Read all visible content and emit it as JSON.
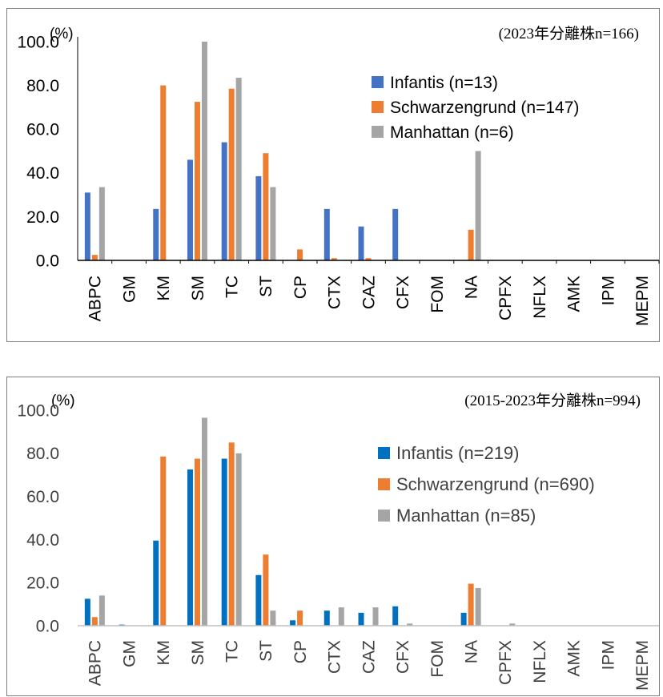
{
  "chart_data": [
    {
      "type": "bar",
      "title": "(2023年分離株n=166)",
      "ylabel": "(%)",
      "ylim": [
        0,
        100
      ],
      "yticks": [
        "0.0",
        "20.0",
        "40.0",
        "60.0",
        "80.0",
        "100.0"
      ],
      "categories": [
        "ABPC",
        "GM",
        "KM",
        "SM",
        "TC",
        "ST",
        "CP",
        "CTX",
        "CAZ",
        "CFX",
        "FOM",
        "NA",
        "CPFX",
        "NFLX",
        "AMK",
        "IPM",
        "MEPM"
      ],
      "series": [
        {
          "name": "Infantis (n=13)",
          "color": "#4472C4",
          "values": [
            31,
            0,
            23.5,
            46,
            54,
            38.5,
            0,
            23.5,
            15.5,
            23.5,
            0,
            0,
            0,
            0,
            0,
            0,
            0
          ]
        },
        {
          "name": "Schwarzengrund (n=147)",
          "color": "#ED7D31",
          "values": [
            2.5,
            0,
            80,
            72.5,
            78.5,
            49,
            5,
            1,
            1,
            0,
            0,
            14,
            0,
            0,
            0,
            0,
            0
          ]
        },
        {
          "name": "Manhattan (n=6)",
          "color": "#A5A5A5",
          "values": [
            33.5,
            0,
            0,
            100,
            83.5,
            33.5,
            0,
            0,
            0,
            0,
            0,
            50,
            0,
            0,
            0,
            0,
            0
          ]
        }
      ],
      "grid": false,
      "legend": "right"
    },
    {
      "type": "bar",
      "title": "(2015-2023年分離株n=994)",
      "ylabel": "(%)",
      "ylim": [
        0,
        100
      ],
      "yticks": [
        "0.0",
        "20.0",
        "40.0",
        "60.0",
        "80.0",
        "100.0"
      ],
      "categories": [
        "ABPC",
        "GM",
        "KM",
        "SM",
        "TC",
        "ST",
        "CP",
        "CTX",
        "CAZ",
        "CFX",
        "FOM",
        "NA",
        "CPFX",
        "NFLX",
        "AMK",
        "IPM",
        "MEPM"
      ],
      "series": [
        {
          "name": "Infantis (n=219)",
          "color": "#0070C0",
          "values": [
            12.5,
            0.5,
            39.5,
            72.5,
            77.5,
            23.5,
            2.5,
            7,
            6,
            9,
            0,
            6,
            0,
            0,
            0,
            0,
            0
          ]
        },
        {
          "name": "Schwarzengrund (n=690)",
          "color": "#ED7D31",
          "values": [
            4,
            0,
            78.5,
            77.5,
            85,
            33,
            7,
            0,
            0,
            0,
            0,
            19.5,
            0,
            0,
            0,
            0,
            0
          ]
        },
        {
          "name": "Manhattan (n=85)",
          "color": "#A5A5A5",
          "values": [
            14,
            0,
            0,
            96.5,
            80,
            7,
            0,
            8.5,
            8.5,
            1,
            0,
            17.5,
            1,
            0,
            0,
            0,
            0
          ]
        }
      ],
      "grid": false,
      "legend": "right"
    }
  ]
}
